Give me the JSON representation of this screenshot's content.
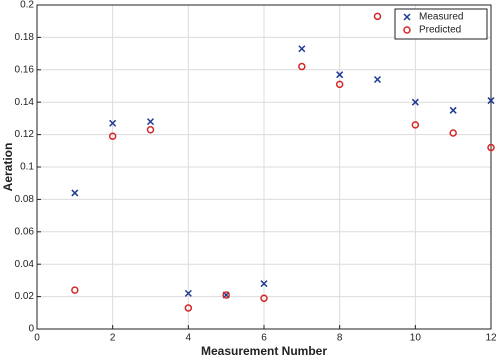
{
  "chart_data": {
    "type": "scatter",
    "xlabel": "Measurement Number",
    "ylabel": "Aeration",
    "x": [
      1,
      2,
      3,
      4,
      5,
      6,
      7,
      8,
      9,
      10,
      11,
      12
    ],
    "series": [
      {
        "name": "Measured",
        "color": "#1f3a93",
        "marker": "x",
        "values": [
          0.084,
          0.127,
          0.128,
          0.022,
          0.021,
          0.028,
          0.173,
          0.157,
          0.154,
          0.14,
          0.135,
          0.141
        ]
      },
      {
        "name": "Predicted",
        "color": "#d62728",
        "marker": "o",
        "values": [
          0.024,
          0.119,
          0.123,
          0.013,
          0.021,
          0.019,
          0.162,
          0.151,
          0.193,
          0.126,
          0.121,
          0.112
        ]
      }
    ],
    "xlim": [
      0,
      12
    ],
    "xticks": [
      0,
      2,
      4,
      6,
      8,
      10,
      12
    ],
    "ylim": [
      0,
      0.2
    ],
    "yticks": [
      0,
      0.02,
      0.04,
      0.06,
      0.08,
      0.1,
      0.12,
      0.14,
      0.16,
      0.18,
      0.2
    ],
    "grid": true,
    "legend": "northeast"
  }
}
